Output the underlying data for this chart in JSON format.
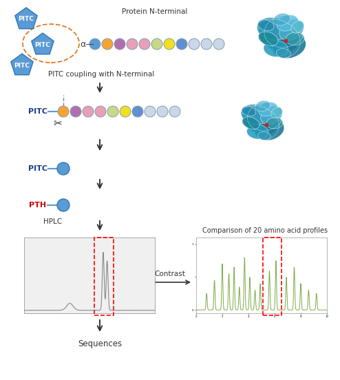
{
  "bg_color": "#ffffff",
  "pitc_color": "#5b9bd5",
  "pitc_border": "#2e75b6",
  "arrow_color": "#404040",
  "dashed_oval_color": "#e07b20",
  "bead_colors_r1": [
    "#5b9bd5",
    "#f4a433",
    "#b070b0",
    "#e8a0b8",
    "#e8a0b8",
    "#c8d888",
    "#f0e020",
    "#6090d0",
    "#c8d8e8",
    "#c8d8e8",
    "#c8d8e8"
  ],
  "bead_colors_r2": [
    "#f4a433",
    "#b070b0",
    "#e8a0b8",
    "#e8a0b8",
    "#c8d888",
    "#f0e020",
    "#6090d0",
    "#c8d8e8",
    "#c8d8e8",
    "#c8d8e8"
  ],
  "pitc_label_color": "#1a3a8a",
  "pth_label_color": "#cc0000",
  "protein_label": "Protein N-terminal",
  "coupling_label": "PITC coupling with N-terminal",
  "hplc_label": "HPLC",
  "contrast_label": "Contrast",
  "sequences_label": "Sequences",
  "comparison_label": "Comparison of 20 amino acid profiles",
  "alpha_label": "α"
}
